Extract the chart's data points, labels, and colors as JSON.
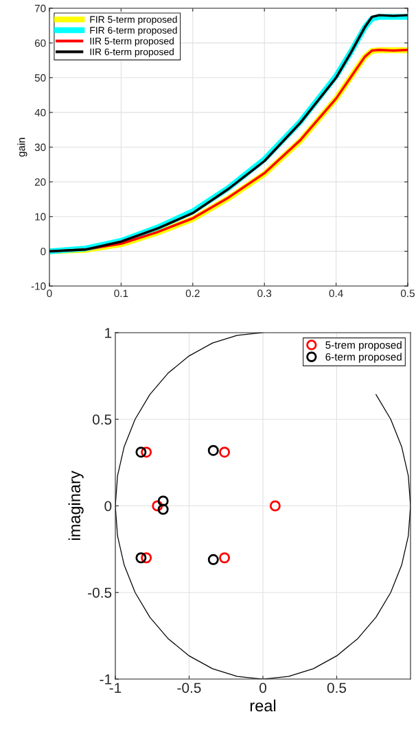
{
  "chart_data": [
    {
      "type": "line",
      "ylabel": "gain",
      "xlim": [
        0,
        0.5
      ],
      "ylim": [
        -10,
        70
      ],
      "xticks": [
        0,
        0.1,
        0.2,
        0.3,
        0.4,
        0.5
      ],
      "yticks": [
        -10,
        0,
        10,
        20,
        30,
        40,
        50,
        60,
        70
      ],
      "grid": true,
      "legend": "top left",
      "series": [
        {
          "name": "FIR 5-term proposed",
          "color": "#ffff00",
          "x": [
            0,
            0.05,
            0.1,
            0.15,
            0.2,
            0.25,
            0.3,
            0.35,
            0.4,
            0.42,
            0.44,
            0.45,
            0.46,
            0.48,
            0.5
          ],
          "values": [
            0,
            0.4,
            2,
            5.3,
            9.3,
            15.3,
            22.3,
            31.8,
            44,
            50,
            56,
            57.7,
            57.9,
            57.9,
            57.9
          ]
        },
        {
          "name": "FIR 6-term proposed",
          "color": "#00ffff",
          "x": [
            0,
            0.05,
            0.1,
            0.15,
            0.2,
            0.25,
            0.3,
            0.35,
            0.4,
            0.42,
            0.44,
            0.45,
            0.46,
            0.48,
            0.5
          ],
          "values": [
            0,
            0.8,
            3,
            6.8,
            11.5,
            18.3,
            26.5,
            37.3,
            50.5,
            57.2,
            64.5,
            67,
            67.5,
            67.5,
            67.5
          ]
        },
        {
          "name": "IIR 5-term proposed",
          "color": "#ff0000",
          "x": [
            0,
            0.05,
            0.1,
            0.15,
            0.2,
            0.25,
            0.3,
            0.35,
            0.4,
            0.42,
            0.44,
            0.45,
            0.46,
            0.48,
            0.5
          ],
          "values": [
            0,
            0.5,
            2.2,
            5.5,
            9.5,
            15.5,
            22.5,
            32,
            44,
            50,
            56,
            57.8,
            58,
            57.8,
            58
          ]
        },
        {
          "name": "IIR 6-term proposed",
          "color": "#000000",
          "x": [
            0,
            0.05,
            0.1,
            0.15,
            0.2,
            0.25,
            0.3,
            0.35,
            0.4,
            0.42,
            0.44,
            0.45,
            0.46,
            0.48,
            0.5
          ],
          "values": [
            0,
            0.5,
            2.8,
            6.5,
            11,
            18,
            26,
            37,
            50,
            57,
            64.5,
            67.5,
            68,
            67.8,
            68
          ]
        }
      ]
    },
    {
      "type": "scatter",
      "xlabel": "real",
      "ylabel": "imaginary",
      "xlim": [
        -1,
        1
      ],
      "ylim": [
        -1,
        1
      ],
      "xticks": [
        -1,
        -0.5,
        0,
        0.5
      ],
      "yticks": [
        -1,
        -0.5,
        0,
        0.5,
        1
      ],
      "grid": true,
      "legend": "top right",
      "marker": "circle",
      "series": [
        {
          "type": "line",
          "marker": "none",
          "color": "#000000",
          "x": [
            1,
            0.985,
            0.94,
            0.866,
            0.766,
            0.643,
            0.5,
            0.342,
            0.174,
            0,
            -0.174,
            -0.342,
            -0.5,
            -0.643,
            -0.766,
            -0.866,
            -0.94,
            -0.985,
            -1,
            -0.985,
            -0.94,
            -0.866,
            -0.766,
            -0.643,
            -0.5,
            -0.342,
            -0.174,
            0,
            0.174,
            0.342,
            0.5,
            0.643,
            0.766,
            0.866,
            0.94,
            0.985,
            1
          ],
          "values": [
            0,
            0.174,
            0.342,
            0.5,
            0.643,
            null,
            null,
            null,
            null,
            1,
            0.985,
            0.94,
            0.866,
            0.766,
            0.643,
            0.5,
            0.342,
            0.174,
            0,
            -0.174,
            -0.342,
            -0.5,
            -0.643,
            -0.766,
            -0.866,
            -0.94,
            -0.985,
            -1,
            -0.985,
            -0.94,
            -0.866,
            -0.766,
            -0.643,
            -0.5,
            -0.342,
            -0.174,
            0
          ]
        },
        {
          "name": "5-trem proposed",
          "color": "#ff0000",
          "x": [
            0.083,
            -0.715,
            -0.79,
            -0.79,
            -0.26,
            -0.26
          ],
          "values": [
            0,
            0,
            0.31,
            -0.3,
            0.31,
            -0.3
          ]
        },
        {
          "name": "6-term proposed",
          "color": "#000000",
          "x": [
            -0.676,
            -0.676,
            -0.826,
            -0.826,
            -0.336,
            -0.336
          ],
          "values": [
            0.028,
            -0.02,
            0.31,
            -0.3,
            0.32,
            -0.31
          ]
        }
      ]
    }
  ]
}
